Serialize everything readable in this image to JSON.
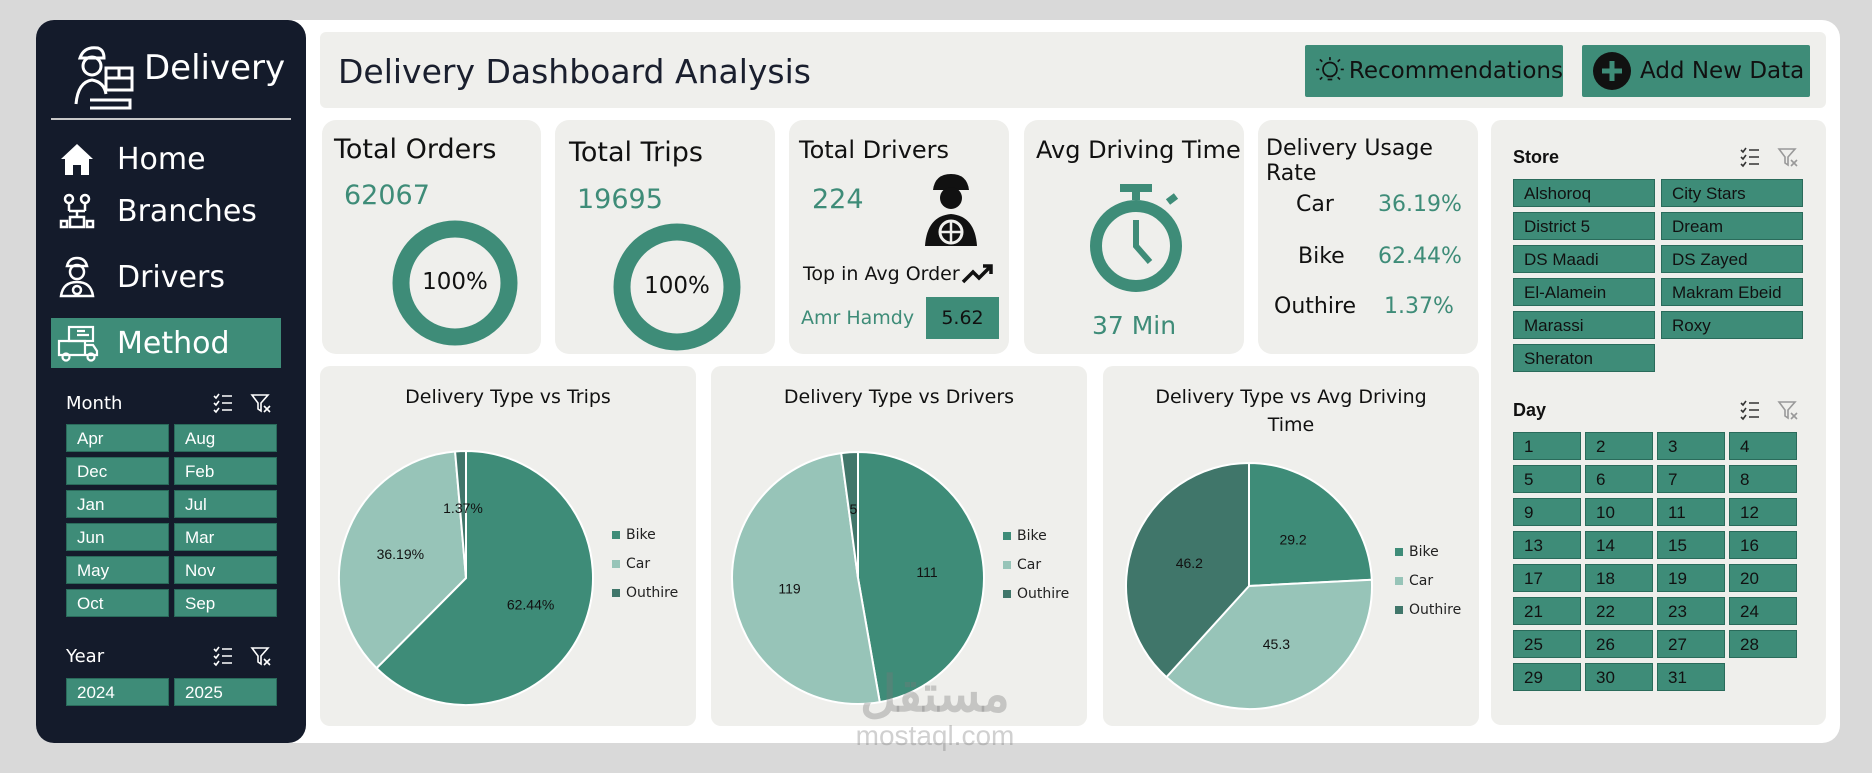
{
  "sidebar": {
    "brand": "Delivery",
    "nav": [
      {
        "label": "Home",
        "icon": "home-icon"
      },
      {
        "label": "Branches",
        "icon": "branches-icon"
      },
      {
        "label": "Drivers",
        "icon": "driver-icon"
      },
      {
        "label": "Method",
        "icon": "truck-icon"
      }
    ],
    "month_title": "Month",
    "months": [
      "Apr",
      "Aug",
      "Dec",
      "Feb",
      "Jan",
      "Jul",
      "Jun",
      "Mar",
      "May",
      "Nov",
      "Oct",
      "Sep"
    ],
    "year_title": "Year",
    "years": [
      "2024",
      "2025"
    ]
  },
  "header": {
    "title": "Delivery Dashboard Analysis",
    "recommendations": "Recommendations",
    "add_new": "Add New Data"
  },
  "kpis": {
    "total_orders": {
      "title": "Total Orders",
      "value": "62067",
      "ring": "100%"
    },
    "total_trips": {
      "title": "Total Trips",
      "value": "19695",
      "ring": "100%"
    },
    "total_drivers": {
      "title": "Total Drivers",
      "value": "224",
      "top_label": "Top in Avg Order",
      "top_name": "Amr Hamdy",
      "top_value": "5.62"
    },
    "avg_time": {
      "title": "Avg Driving Time",
      "value": "37 Min"
    },
    "usage": {
      "title": "Delivery Usage Rate",
      "rows": [
        {
          "label": "Car",
          "value": "36.19%"
        },
        {
          "label": "Bike",
          "value": "62.44%"
        },
        {
          "label": "Outhire",
          "value": "1.37%"
        }
      ]
    }
  },
  "chart_data": [
    {
      "type": "pie",
      "title": "Delivery Type vs Trips",
      "categories": [
        "Bike",
        "Car",
        "Outhire"
      ],
      "values": [
        62.44,
        36.19,
        1.37
      ],
      "labels": [
        "62.44%",
        "36.19%",
        "1.37%"
      ],
      "legend": "right"
    },
    {
      "type": "pie",
      "title": "Delivery Type vs Drivers",
      "categories": [
        "Bike",
        "Car",
        "Outhire"
      ],
      "values": [
        111,
        119,
        5
      ],
      "labels": [
        "111",
        "119",
        "5"
      ],
      "legend": "right"
    },
    {
      "type": "pie",
      "title": "Delivery Type vs Avg Driving Time",
      "categories": [
        "Bike",
        "Car",
        "Outhire"
      ],
      "values": [
        29.2,
        45.3,
        46.2
      ],
      "labels": [
        "29.2",
        "45.3",
        "46.2"
      ],
      "legend": "right"
    }
  ],
  "store": {
    "title": "Store",
    "items": [
      "Alshoroq",
      "City Stars",
      "District 5",
      "Dream",
      "DS Maadi",
      "DS Zayed",
      "El-Alamein",
      "Makram Ebeid",
      "Marassi",
      "Roxy",
      "Sheraton"
    ]
  },
  "day": {
    "title": "Day",
    "items": [
      "1",
      "2",
      "3",
      "4",
      "5",
      "6",
      "7",
      "8",
      "9",
      "10",
      "11",
      "12",
      "13",
      "14",
      "15",
      "16",
      "17",
      "18",
      "19",
      "20",
      "21",
      "22",
      "23",
      "24",
      "25",
      "26",
      "27",
      "28",
      "29",
      "30",
      "31"
    ]
  },
  "colors": {
    "accent": "#3e8c78",
    "bike": "#3e8c78",
    "car": "#97c4b8",
    "outhire": "#40766a",
    "sidebar": "#141b2b",
    "card": "#efefec"
  },
  "watermark": {
    "arabic": "مستقل",
    "latin": "mostaql.com"
  }
}
